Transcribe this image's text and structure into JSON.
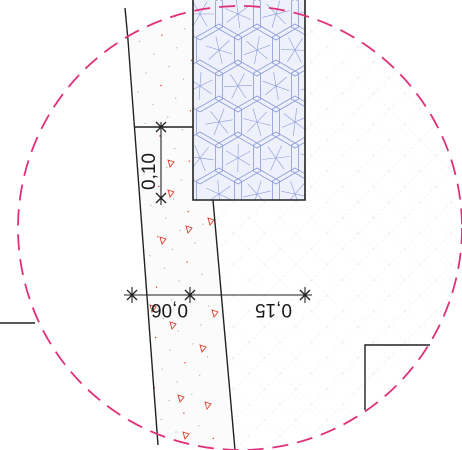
{
  "dimensions": {
    "vertical_label": "0,10",
    "horizontal_left_label": "0,06",
    "horizontal_right_label": "0,15"
  },
  "colors": {
    "paper": "#ffffff",
    "line": "#222222",
    "detail_circle": "#e0307a",
    "insulation_hatch": "#8a9ad8",
    "insulation_fill": "#eef1fb",
    "aggregate_marks": "#e23b2a",
    "diagonal_hatch": "#dcdcdc"
  },
  "icons": {
    "detail_boundary": "dashed-circle",
    "dimension_tick": "cross-tick"
  }
}
